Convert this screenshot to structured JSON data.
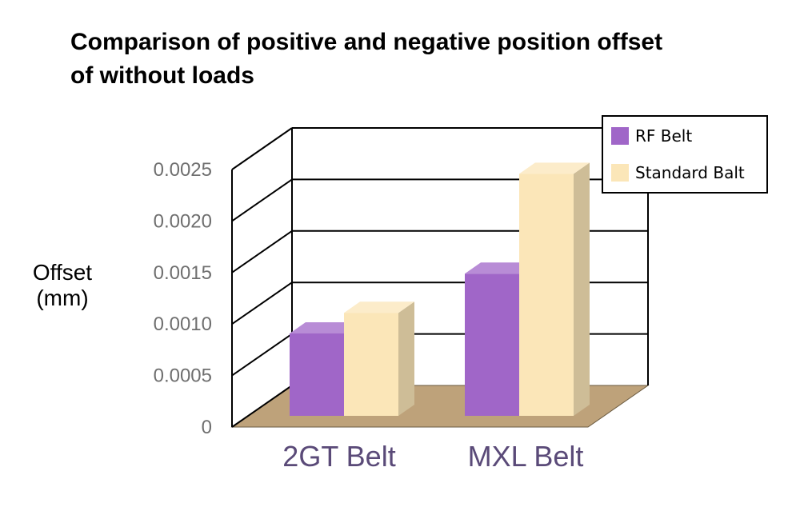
{
  "chart_data": {
    "type": "bar",
    "title": [
      "Comparison of positive and negative position offset",
      "of without loads"
    ],
    "ylabel": [
      "Offset",
      "(mm)"
    ],
    "xlabel": "",
    "categories": [
      "2GT Belt",
      "MXL Belt"
    ],
    "series": [
      {
        "name": "RF Belt",
        "values": [
          0.0008,
          0.00138
        ],
        "color": "#a066c8"
      },
      {
        "name": "Standard Balt",
        "values": [
          0.001,
          0.00235
        ],
        "color": "#fbe6b8"
      }
    ],
    "ylim": [
      0,
      0.0025
    ],
    "yticks": [
      "0",
      "0.0005",
      "0.0010",
      "0.0015",
      "0.0020",
      "0.0025"
    ],
    "yticks_values": [
      0,
      0.0005,
      0.001,
      0.0015,
      0.002,
      0.0025
    ],
    "grid": true,
    "legend_position": "top-right",
    "colors": {
      "floor": "#bea27a",
      "tick_text": "#6f6f6f",
      "category_text": "#5a4a78"
    }
  }
}
